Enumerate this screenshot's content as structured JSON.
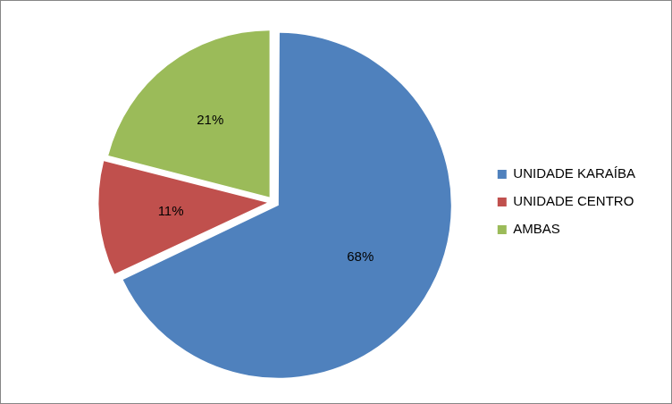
{
  "chart_data": {
    "type": "pie",
    "categories": [
      "UNIDADE KARAÍBA",
      "UNIDADE CENTRO",
      "AMBAS"
    ],
    "values": [
      68,
      11,
      21
    ],
    "value_labels": [
      "68%",
      "11%",
      "21%"
    ],
    "colors": [
      "#4f81bd",
      "#c0504d",
      "#9bbb59"
    ],
    "legend": "right",
    "data_labels": true
  }
}
